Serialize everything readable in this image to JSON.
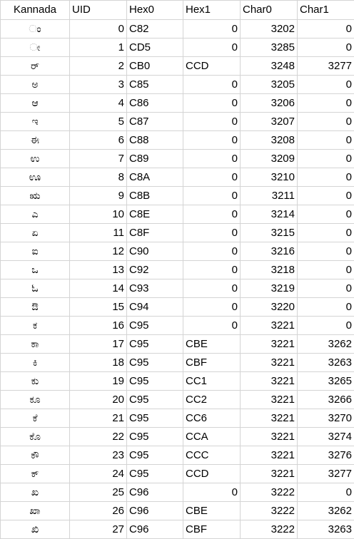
{
  "sheet": {
    "headers": [
      "Kannada",
      "UID",
      "Hex0",
      "Hex1",
      "Char0",
      "Char1"
    ],
    "rows": [
      [
        "ಂ",
        "0",
        "C82",
        "0",
        "3202",
        "0"
      ],
      [
        "ೕ",
        "1",
        "CD5",
        "0",
        "3285",
        "0"
      ],
      [
        "ರ್",
        "2",
        "CB0",
        "CCD",
        "3248",
        "3277"
      ],
      [
        "ಅ",
        "3",
        "C85",
        "0",
        "3205",
        "0"
      ],
      [
        "ಆ",
        "4",
        "C86",
        "0",
        "3206",
        "0"
      ],
      [
        "ಇ",
        "5",
        "C87",
        "0",
        "3207",
        "0"
      ],
      [
        "ಈ",
        "6",
        "C88",
        "0",
        "3208",
        "0"
      ],
      [
        "ಉ",
        "7",
        "C89",
        "0",
        "3209",
        "0"
      ],
      [
        "ಊ",
        "8",
        "C8A",
        "0",
        "3210",
        "0"
      ],
      [
        "ಋ",
        "9",
        "C8B",
        "0",
        "3211",
        "0"
      ],
      [
        "ಎ",
        "10",
        "C8E",
        "0",
        "3214",
        "0"
      ],
      [
        "ಏ",
        "11",
        "C8F",
        "0",
        "3215",
        "0"
      ],
      [
        "ಐ",
        "12",
        "C90",
        "0",
        "3216",
        "0"
      ],
      [
        "ಒ",
        "13",
        "C92",
        "0",
        "3218",
        "0"
      ],
      [
        "ಓ",
        "14",
        "C93",
        "0",
        "3219",
        "0"
      ],
      [
        "ಔ",
        "15",
        "C94",
        "0",
        "3220",
        "0"
      ],
      [
        "ಕ",
        "16",
        "C95",
        "0",
        "3221",
        "0"
      ],
      [
        "ಕಾ",
        "17",
        "C95",
        "CBE",
        "3221",
        "3262"
      ],
      [
        "ಕಿ",
        "18",
        "C95",
        "CBF",
        "3221",
        "3263"
      ],
      [
        "ಕು",
        "19",
        "C95",
        "CC1",
        "3221",
        "3265"
      ],
      [
        "ಕೂ",
        "20",
        "C95",
        "CC2",
        "3221",
        "3266"
      ],
      [
        "ಕೆ",
        "21",
        "C95",
        "CC6",
        "3221",
        "3270"
      ],
      [
        "ಕೊ",
        "22",
        "C95",
        "CCA",
        "3221",
        "3274"
      ],
      [
        "ಕೌ",
        "23",
        "C95",
        "CCC",
        "3221",
        "3276"
      ],
      [
        "ಕ್",
        "24",
        "C95",
        "CCD",
        "3221",
        "3277"
      ],
      [
        "ಖ",
        "25",
        "C96",
        "0",
        "3222",
        "0"
      ],
      [
        "ಖಾ",
        "26",
        "C96",
        "CBE",
        "3222",
        "3262"
      ],
      [
        "ಖಿ",
        "27",
        "C96",
        "CBF",
        "3222",
        "3263"
      ]
    ]
  }
}
